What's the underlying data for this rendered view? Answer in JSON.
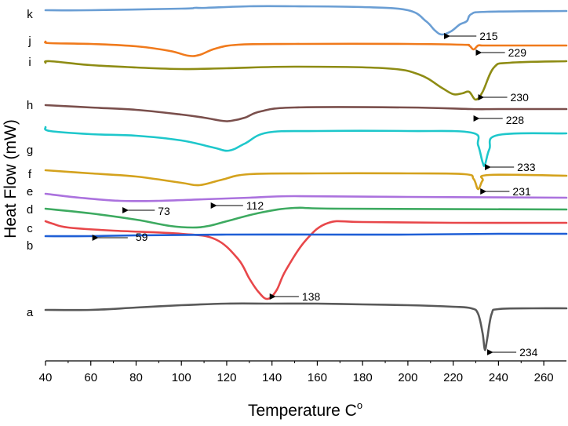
{
  "chart_data": {
    "type": "line",
    "title": "",
    "xlabel": "Temperature C",
    "xlabel_superscript": "o",
    "ylabel": "Heat Flow (mW)",
    "xlim": [
      40,
      270
    ],
    "xticks": [
      40,
      60,
      80,
      100,
      120,
      140,
      160,
      180,
      200,
      220,
      240,
      260
    ],
    "yticks_shown": false,
    "grid": false,
    "series": [
      {
        "name": "a",
        "color": "#595959",
        "x": [
          40,
          60,
          80,
          100,
          120,
          140,
          160,
          180,
          200,
          220,
          228,
          231,
          233,
          234,
          235,
          237,
          240,
          255,
          270
        ],
        "y": [
          395,
          395,
          392,
          389,
          387,
          387,
          387,
          388,
          389,
          391,
          393,
          400,
          425,
          446,
          432,
          400,
          394,
          393,
          393
        ]
      },
      {
        "name": "b",
        "color": "#e8474a",
        "x": [
          40,
          43,
          50,
          70,
          100,
          115,
          125,
          130,
          134,
          138,
          142,
          146,
          155,
          165,
          180,
          220,
          270
        ],
        "y": [
          282,
          285,
          290,
          294,
          298,
          305,
          330,
          355,
          372,
          381,
          370,
          345,
          306,
          284,
          283,
          284,
          284
        ]
      },
      {
        "name": "c",
        "color": "#1f5fd6",
        "x": [
          40,
          59,
          80,
          120,
          160,
          200,
          240,
          270
        ],
        "y": [
          301,
          301,
          300,
          299,
          299,
          299,
          298,
          298
        ]
      },
      {
        "name": "d",
        "color": "#3daa60",
        "x": [
          40,
          60,
          80,
          95,
          105,
          112,
          120,
          135,
          150,
          170,
          270
        ],
        "y": [
          266,
          272,
          280,
          288,
          290,
          288,
          282,
          271,
          265,
          266,
          267
        ]
      },
      {
        "name": "e",
        "color": "#ab72de",
        "x": [
          40,
          55,
          73,
          90,
          110,
          130,
          150,
          200,
          270
        ],
        "y": [
          247,
          252,
          256,
          256,
          254,
          252,
          250,
          251,
          252
        ]
      },
      {
        "name": "f",
        "color": "#d4a21d",
        "x": [
          40,
          60,
          80,
          100,
          108,
          118,
          130,
          160,
          200,
          225,
          229,
          231,
          233,
          236,
          270
        ],
        "y": [
          217,
          221,
          225,
          233,
          236,
          229,
          222,
          221,
          221,
          222,
          228,
          241,
          230,
          223,
          224
        ]
      },
      {
        "name": "g",
        "color": "#1ec7cb",
        "x": [
          40,
          42,
          60,
          80,
          100,
          114,
          121,
          128,
          138,
          160,
          200,
          228,
          231,
          233,
          234,
          236,
          240,
          270
        ],
        "y": [
          162,
          167,
          171,
          173,
          179,
          188,
          192,
          183,
          169,
          167,
          167,
          169,
          185,
          207,
          210,
          190,
          172,
          170
        ]
      },
      {
        "name": "h",
        "color": "#7a4f4c",
        "x": [
          40,
          60,
          80,
          100,
          110,
          118,
          122,
          128,
          135,
          150,
          200,
          228,
          240,
          270
        ],
        "y": [
          134,
          137,
          140,
          146,
          150,
          154,
          154,
          150,
          142,
          137,
          137,
          139,
          139,
          139
        ]
      },
      {
        "name": "i",
        "color": "#8e8c14",
        "x": [
          40,
          42,
          60,
          80,
          100,
          120,
          150,
          190,
          205,
          215,
          220,
          224,
          227,
          230,
          233,
          238,
          245,
          270
        ],
        "y": [
          80,
          78,
          83,
          86,
          88,
          87,
          85,
          87,
          95,
          112,
          120,
          119,
          117,
          127,
          117,
          86,
          80,
          78
        ]
      },
      {
        "name": "j",
        "color": "#f07a1c",
        "x": [
          40,
          42,
          60,
          80,
          95,
          103,
          108,
          115,
          125,
          150,
          200,
          224,
          227,
          229,
          231,
          233,
          240,
          270
        ],
        "y": [
          53,
          55,
          56,
          59,
          65,
          71,
          70,
          62,
          57,
          56,
          56,
          57,
          58,
          63,
          58,
          58,
          58,
          58
        ]
      },
      {
        "name": "k",
        "color": "#6a9ed4",
        "x": [
          40,
          60,
          100,
          106,
          111,
          130,
          150,
          180,
          200,
          208,
          212,
          215,
          219,
          223,
          226,
          228,
          235,
          270
        ],
        "y": [
          13,
          13,
          11,
          10,
          10,
          8,
          8,
          9,
          13,
          27,
          39,
          44,
          40,
          31,
          27,
          18,
          15,
          14
        ]
      }
    ],
    "peak_annotations": [
      {
        "text": "234",
        "series": "a",
        "x": 234
      },
      {
        "text": "138",
        "series": "b",
        "x": 138
      },
      {
        "text": "59",
        "series": "c",
        "x": 59
      },
      {
        "text": "112",
        "series": "d",
        "x": 112
      },
      {
        "text": "73",
        "series": "e",
        "x": 73
      },
      {
        "text": "231",
        "series": "f",
        "x": 231
      },
      {
        "text": "233",
        "series": "g",
        "x": 233
      },
      {
        "text": "228",
        "series": "h",
        "x": 228
      },
      {
        "text": "230",
        "series": "i",
        "x": 230
      },
      {
        "text": "229",
        "series": "j",
        "x": 229
      },
      {
        "text": "215",
        "series": "k",
        "x": 215
      }
    ]
  }
}
